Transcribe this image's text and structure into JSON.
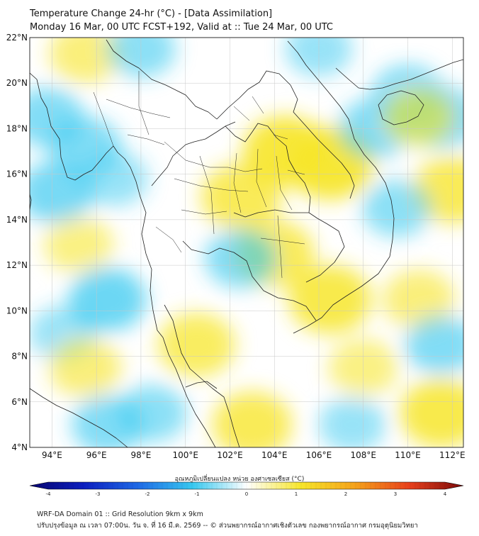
{
  "header": {
    "title_line1": "Temperature Change 24-hr (°C) - [Data Assimilation]",
    "title_line2": "Monday 16 Mar, 00 UTC FCST+192, Valid at :: Tue 24 Mar, 00 UTC"
  },
  "map": {
    "lat_range": [
      4,
      22
    ],
    "lon_range": [
      93,
      112.5
    ],
    "lat_ticks": [
      "22°N",
      "20°N",
      "18°N",
      "16°N",
      "14°N",
      "12°N",
      "10°N",
      "8°N",
      "6°N",
      "4°N"
    ],
    "lon_ticks": [
      "94°E",
      "96°E",
      "98°E",
      "100°E",
      "102°E",
      "104°E",
      "106°E",
      "108°E",
      "110°E",
      "112°E"
    ],
    "background_color": "#ffffff",
    "warm_color": "#f7e62a",
    "cool_color": "#37c8f0",
    "border_color": "#222222",
    "field_blobs": [
      {
        "lon": 95.5,
        "lat": 21.3,
        "value": 0.5
      },
      {
        "lon": 98.0,
        "lat": 21.5,
        "value": -0.4
      },
      {
        "lon": 93.8,
        "lat": 18.5,
        "value": -0.5
      },
      {
        "lon": 95.5,
        "lat": 17.2,
        "value": -0.5
      },
      {
        "lon": 94.2,
        "lat": 15.2,
        "value": -0.6
      },
      {
        "lon": 96.8,
        "lat": 15.8,
        "value": -0.3
      },
      {
        "lon": 95.2,
        "lat": 12.9,
        "value": 0.4
      },
      {
        "lon": 96.5,
        "lat": 10.5,
        "value": -0.7
      },
      {
        "lon": 94.5,
        "lat": 9.0,
        "value": -0.3
      },
      {
        "lon": 95.5,
        "lat": 7.5,
        "value": 0.5
      },
      {
        "lon": 96.5,
        "lat": 5.0,
        "value": -0.5
      },
      {
        "lon": 98.5,
        "lat": 5.5,
        "value": -0.4
      },
      {
        "lon": 100.5,
        "lat": 8.5,
        "value": 0.7
      },
      {
        "lon": 103.0,
        "lat": 5.0,
        "value": 0.8
      },
      {
        "lon": 104.5,
        "lat": 17.0,
        "value": 1.0
      },
      {
        "lon": 106.5,
        "lat": 16.5,
        "value": 1.1
      },
      {
        "lon": 102.5,
        "lat": 15.0,
        "value": 0.8
      },
      {
        "lon": 104.0,
        "lat": 12.5,
        "value": 0.8
      },
      {
        "lon": 106.5,
        "lat": 10.5,
        "value": 0.9
      },
      {
        "lon": 102.5,
        "lat": 12.3,
        "value": -0.5
      },
      {
        "lon": 108.5,
        "lat": 18.0,
        "value": -0.5
      },
      {
        "lon": 110.0,
        "lat": 19.5,
        "value": -0.5
      },
      {
        "lon": 111.5,
        "lat": 18.5,
        "value": -0.6
      },
      {
        "lon": 110.5,
        "lat": 18.5,
        "value": 0.5
      },
      {
        "lon": 106.0,
        "lat": 21.5,
        "value": -0.3
      },
      {
        "lon": 112.0,
        "lat": 15.3,
        "value": 0.8
      },
      {
        "lon": 109.5,
        "lat": 14.5,
        "value": -0.4
      },
      {
        "lon": 110.5,
        "lat": 10.5,
        "value": 0.5
      },
      {
        "lon": 111.5,
        "lat": 8.5,
        "value": -0.5
      },
      {
        "lon": 108.0,
        "lat": 7.5,
        "value": 0.4
      },
      {
        "lon": 111.5,
        "lat": 5.5,
        "value": 0.9
      },
      {
        "lon": 107.5,
        "lat": 5.0,
        "value": -0.3
      }
    ]
  },
  "colorbar": {
    "title": "อุณหภูมิเปลี่ยนแปลง หน่วย องศาเซลเซียส (°C)",
    "min": -4,
    "max": 4,
    "ticks": [
      "-4",
      "-3",
      "-2",
      "-1",
      "0",
      "1",
      "2",
      "3",
      "4"
    ],
    "colors": [
      "#08066e",
      "#0d1fc0",
      "#1f6ae6",
      "#37c8f0",
      "#ffffff",
      "#f7e62a",
      "#f5a21b",
      "#e8401c",
      "#7a0a0a"
    ]
  },
  "footer": {
    "line1": "WRF-DA Domain 01 :: Grid Resolution 9km x 9km",
    "line2": "ปรับปรุงข้อมูล ณ เวลา 07:00น. วัน จ. ที่ 16 มี.ค. 2569 -- © ส่วนพยากรณ์อากาศเชิงตัวเลข กองพยากรณ์อากาศ กรมอุตุนิยมวิทยา"
  }
}
